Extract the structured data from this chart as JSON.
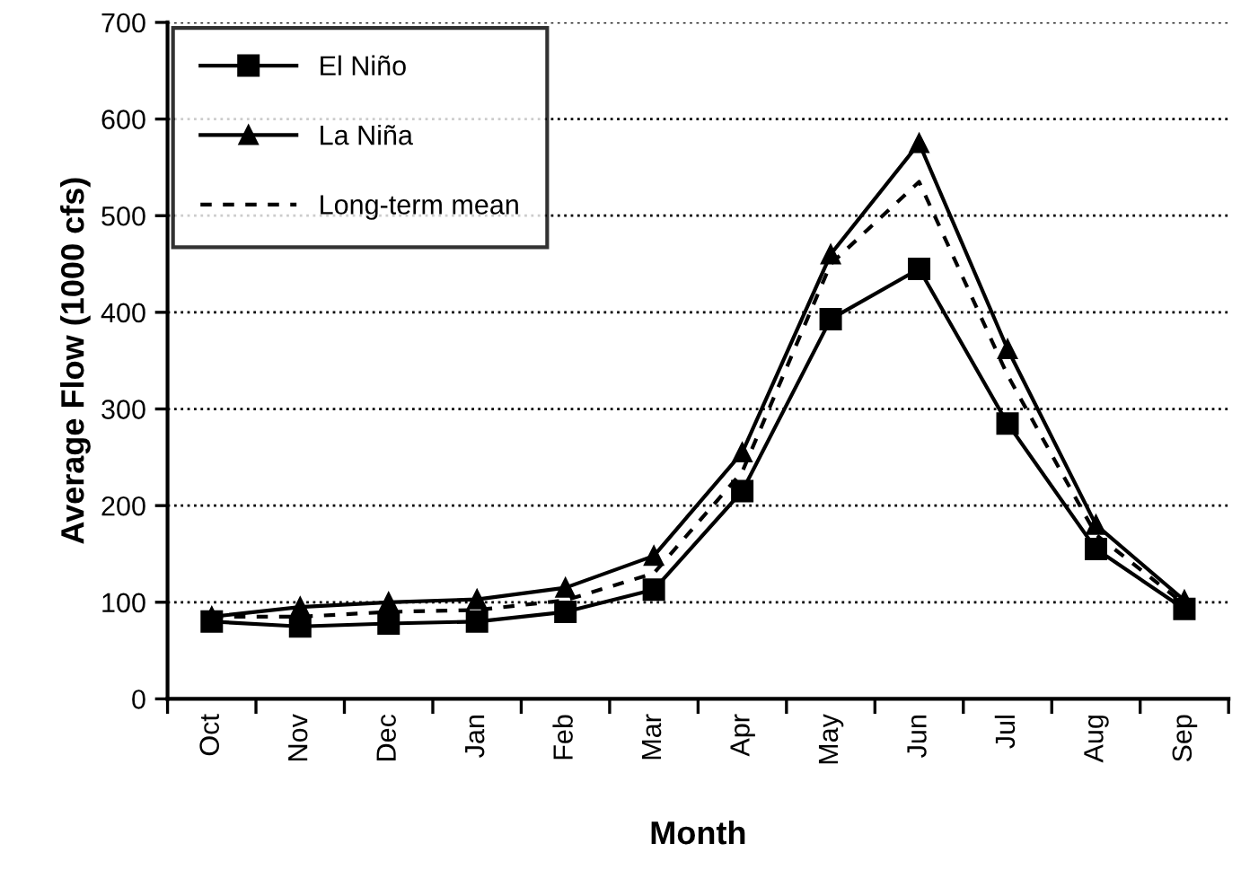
{
  "chart_data": {
    "type": "line",
    "xlabel": "Month",
    "ylabel": "Average Flow (1000 cfs)",
    "categories": [
      "Oct",
      "Nov",
      "Dec",
      "Jan",
      "Feb",
      "Mar",
      "Apr",
      "May",
      "Jun",
      "Jul",
      "Aug",
      "Sep"
    ],
    "series": [
      {
        "name": "El Niño",
        "color": "#000000",
        "marker": "square",
        "line_style": "solid",
        "values": [
          80,
          75,
          78,
          80,
          90,
          113,
          215,
          393,
          445,
          285,
          155,
          93
        ]
      },
      {
        "name": "La Niña",
        "color": "#000000",
        "marker": "triangle",
        "line_style": "solid",
        "values": [
          85,
          95,
          100,
          103,
          115,
          148,
          255,
          460,
          575,
          362,
          180,
          102
        ]
      },
      {
        "name": "Long-term mean",
        "color": "#000000",
        "marker": "none",
        "line_style": "dashed",
        "values": [
          85,
          85,
          90,
          92,
          102,
          130,
          235,
          450,
          535,
          335,
          170,
          98
        ]
      }
    ],
    "ylim": [
      0,
      700
    ],
    "yticks": [
      0,
      100,
      200,
      300,
      400,
      500,
      600,
      700
    ],
    "grid": "y",
    "legend": "top left"
  }
}
